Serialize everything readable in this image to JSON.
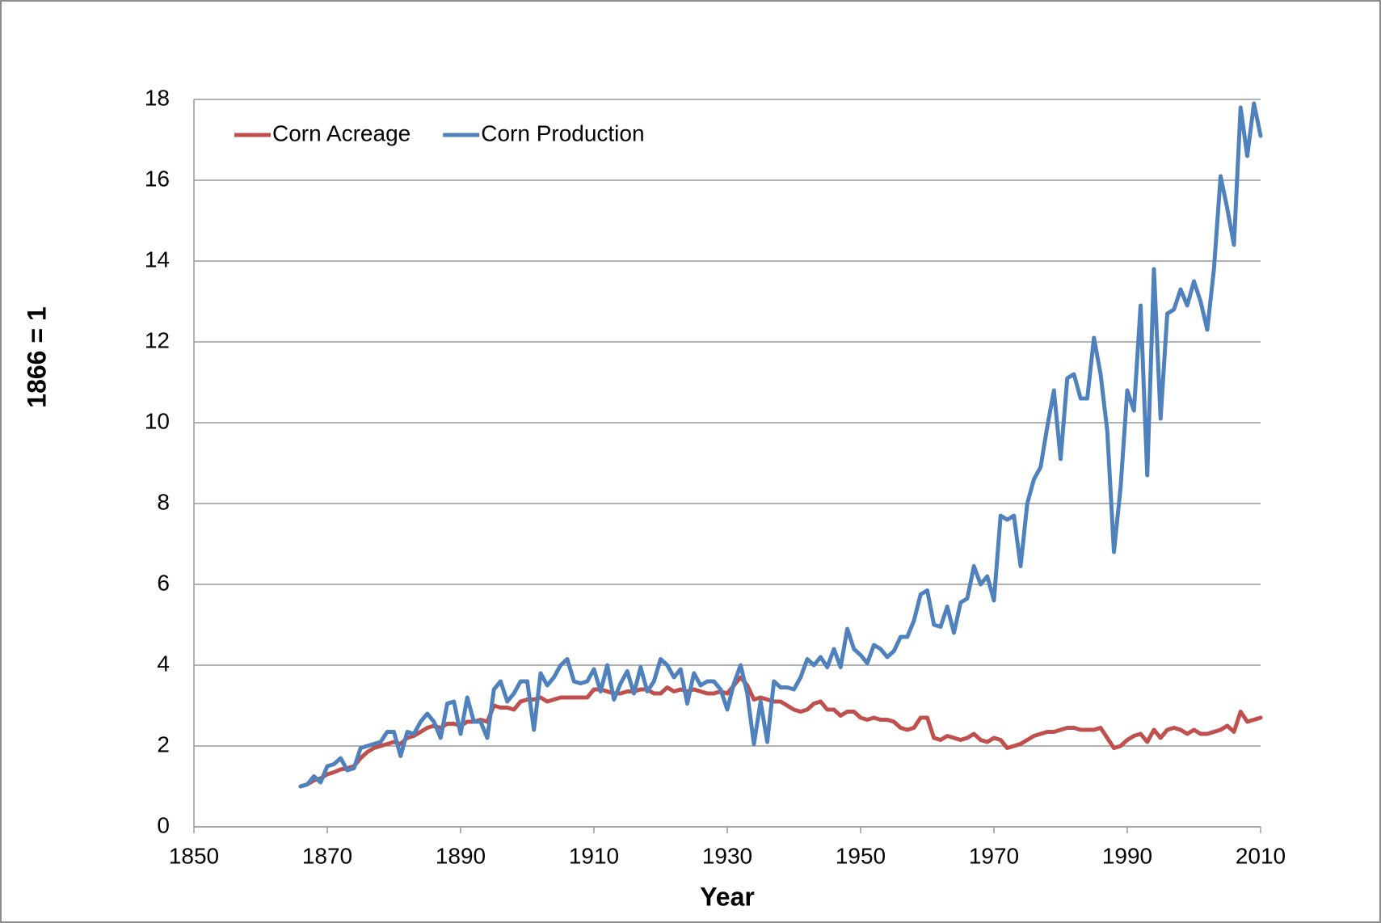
{
  "chart_data": {
    "type": "line",
    "y_label": "1866 = 1",
    "x_label": "Year",
    "legend": "upper left",
    "grid": true,
    "xlim": [
      1850,
      2010
    ],
    "xticks": [
      1850,
      1870,
      1890,
      1910,
      1930,
      1950,
      1970,
      1990,
      2010
    ],
    "ylim": [
      0,
      18
    ],
    "yticks": [
      0,
      2,
      4,
      6,
      8,
      10,
      12,
      14,
      16,
      18
    ],
    "x": [
      1866,
      1867,
      1868,
      1869,
      1870,
      1871,
      1872,
      1873,
      1874,
      1875,
      1876,
      1877,
      1878,
      1879,
      1880,
      1881,
      1882,
      1883,
      1884,
      1885,
      1886,
      1887,
      1888,
      1889,
      1890,
      1891,
      1892,
      1893,
      1894,
      1895,
      1896,
      1897,
      1898,
      1899,
      1900,
      1901,
      1902,
      1903,
      1904,
      1905,
      1906,
      1907,
      1908,
      1909,
      1910,
      1911,
      1912,
      1913,
      1914,
      1915,
      1916,
      1917,
      1918,
      1919,
      1920,
      1921,
      1922,
      1923,
      1924,
      1925,
      1926,
      1927,
      1928,
      1929,
      1930,
      1931,
      1932,
      1933,
      1934,
      1935,
      1936,
      1937,
      1938,
      1939,
      1940,
      1941,
      1942,
      1943,
      1944,
      1945,
      1946,
      1947,
      1948,
      1949,
      1950,
      1951,
      1952,
      1953,
      1954,
      1955,
      1956,
      1957,
      1958,
      1959,
      1960,
      1961,
      1962,
      1963,
      1964,
      1965,
      1966,
      1967,
      1968,
      1969,
      1970,
      1971,
      1972,
      1973,
      1974,
      1975,
      1976,
      1977,
      1978,
      1979,
      1980,
      1981,
      1982,
      1983,
      1984,
      1985,
      1986,
      1987,
      1988,
      1989,
      1990,
      1991,
      1992,
      1993,
      1994,
      1995,
      1996,
      1997,
      1998,
      1999,
      2000,
      2001,
      2002,
      2003,
      2004,
      2005,
      2006,
      2007,
      2008,
      2009,
      2010
    ],
    "series": [
      {
        "name": "Corn Acreage",
        "color": "#c0504d",
        "values": [
          1.0,
          1.05,
          1.15,
          1.2,
          1.3,
          1.35,
          1.42,
          1.45,
          1.5,
          1.7,
          1.85,
          1.95,
          2.0,
          2.05,
          2.1,
          2.05,
          2.2,
          2.25,
          2.35,
          2.45,
          2.5,
          2.45,
          2.55,
          2.55,
          2.5,
          2.6,
          2.6,
          2.65,
          2.6,
          3.0,
          2.95,
          2.95,
          2.9,
          3.1,
          3.15,
          3.15,
          3.2,
          3.1,
          3.15,
          3.2,
          3.2,
          3.2,
          3.2,
          3.2,
          3.4,
          3.4,
          3.35,
          3.3,
          3.3,
          3.35,
          3.35,
          3.4,
          3.4,
          3.3,
          3.3,
          3.45,
          3.35,
          3.4,
          3.35,
          3.4,
          3.35,
          3.3,
          3.3,
          3.35,
          3.3,
          3.5,
          3.7,
          3.5,
          3.15,
          3.2,
          3.15,
          3.1,
          3.1,
          3.0,
          2.9,
          2.85,
          2.9,
          3.05,
          3.1,
          2.9,
          2.9,
          2.75,
          2.85,
          2.85,
          2.7,
          2.65,
          2.7,
          2.65,
          2.65,
          2.6,
          2.45,
          2.4,
          2.45,
          2.7,
          2.7,
          2.2,
          2.15,
          2.25,
          2.2,
          2.15,
          2.2,
          2.3,
          2.15,
          2.1,
          2.2,
          2.15,
          1.95,
          2.0,
          2.05,
          2.15,
          2.25,
          2.3,
          2.35,
          2.35,
          2.4,
          2.45,
          2.45,
          2.4,
          2.4,
          2.4,
          2.45,
          2.2,
          1.95,
          2.0,
          2.15,
          2.25,
          2.3,
          2.1,
          2.4,
          2.2,
          2.4,
          2.45,
          2.4,
          2.3,
          2.4,
          2.3,
          2.3,
          2.35,
          2.4,
          2.5,
          2.35,
          2.85,
          2.6,
          2.65,
          2.7
        ]
      },
      {
        "name": "Corn Production",
        "color": "#4f81bd",
        "values": [
          1.0,
          1.05,
          1.25,
          1.1,
          1.5,
          1.55,
          1.7,
          1.4,
          1.45,
          1.95,
          2.0,
          2.05,
          2.1,
          2.35,
          2.35,
          1.75,
          2.35,
          2.3,
          2.6,
          2.8,
          2.6,
          2.2,
          3.05,
          3.1,
          2.3,
          3.2,
          2.6,
          2.6,
          2.2,
          3.4,
          3.6,
          3.1,
          3.3,
          3.6,
          3.6,
          2.4,
          3.8,
          3.5,
          3.7,
          4.0,
          4.15,
          3.6,
          3.55,
          3.6,
          3.9,
          3.35,
          4.0,
          3.15,
          3.55,
          3.85,
          3.3,
          3.95,
          3.35,
          3.6,
          4.15,
          4.0,
          3.7,
          3.9,
          3.05,
          3.8,
          3.5,
          3.6,
          3.6,
          3.4,
          2.9,
          3.55,
          4.0,
          3.3,
          2.05,
          3.1,
          2.1,
          3.6,
          3.45,
          3.45,
          3.4,
          3.7,
          4.15,
          4.0,
          4.2,
          3.95,
          4.4,
          3.95,
          4.9,
          4.4,
          4.25,
          4.05,
          4.5,
          4.4,
          4.2,
          4.35,
          4.7,
          4.7,
          5.1,
          5.75,
          5.85,
          5.0,
          4.95,
          5.45,
          4.8,
          5.55,
          5.65,
          6.45,
          6.0,
          6.2,
          5.6,
          7.7,
          7.6,
          7.7,
          6.45,
          8.0,
          8.6,
          8.9,
          9.9,
          10.8,
          9.1,
          11.1,
          11.2,
          10.6,
          10.6,
          12.1,
          11.2,
          9.8,
          6.8,
          8.4,
          10.8,
          10.3,
          12.9,
          8.7,
          13.8,
          10.1,
          12.7,
          12.8,
          13.3,
          12.9,
          13.5,
          13.0,
          12.3,
          13.8,
          16.1,
          15.3,
          14.4,
          17.8,
          16.6,
          17.9,
          17.1
        ]
      }
    ]
  }
}
